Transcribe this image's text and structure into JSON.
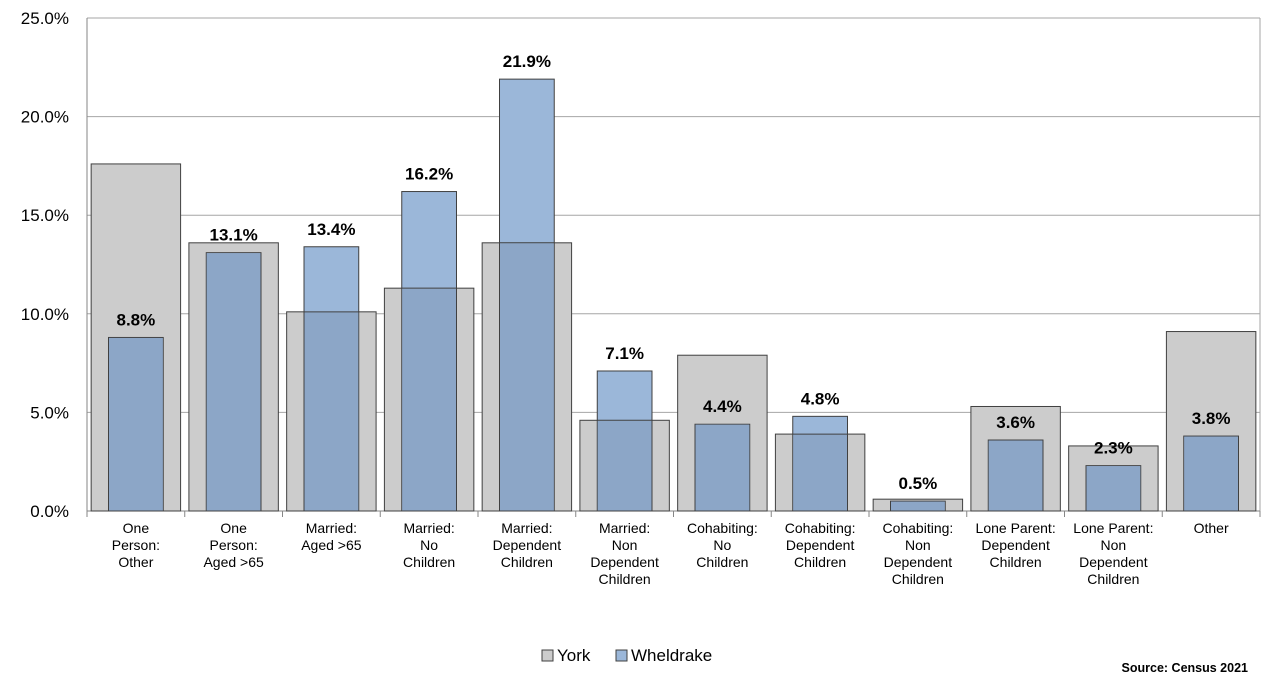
{
  "chart_data": {
    "type": "bar",
    "categories": [
      [
        "One",
        "Person:",
        "Other"
      ],
      [
        "One",
        "Person:",
        "Aged >65"
      ],
      [
        "Married:",
        "Aged >65"
      ],
      [
        "Married:",
        "No",
        "Children"
      ],
      [
        "Married:",
        "Dependent",
        "Children"
      ],
      [
        "Married:",
        "Non",
        "Dependent",
        "Children"
      ],
      [
        "Cohabiting:",
        "No",
        "Children"
      ],
      [
        "Cohabiting:",
        "Dependent",
        "Children"
      ],
      [
        "Cohabiting:",
        "Non",
        "Dependent",
        "Children"
      ],
      [
        "Lone Parent:",
        "Dependent",
        "Children"
      ],
      [
        "Lone Parent:",
        "Non",
        "Dependent",
        "Children"
      ],
      [
        "Other"
      ]
    ],
    "series": [
      {
        "name": "York",
        "values": [
          17.6,
          13.6,
          10.1,
          11.3,
          13.6,
          4.6,
          7.9,
          3.9,
          0.6,
          5.3,
          3.3,
          9.1
        ],
        "color": "#cccccc"
      },
      {
        "name": "Wheldrake",
        "values": [
          8.8,
          13.1,
          13.4,
          16.2,
          21.9,
          7.1,
          4.4,
          4.8,
          0.5,
          3.6,
          2.3,
          3.8
        ],
        "color": "#9bb7d9"
      }
    ],
    "data_labels": [
      "8.8%",
      "13.1%",
      "13.4%",
      "16.2%",
      "21.9%",
      "7.1%",
      "4.4%",
      "4.8%",
      "0.5%",
      "3.6%",
      "2.3%",
      "3.8%"
    ],
    "y_ticks": [
      "0.0%",
      "5.0%",
      "10.0%",
      "15.0%",
      "20.0%",
      "25.0%"
    ],
    "ylim": [
      0,
      25
    ],
    "grid": true,
    "legend_position": "bottom-center",
    "overlap_color": "#8ca6c7",
    "title": "",
    "xlabel": "",
    "ylabel": ""
  },
  "source_text": "Source: Census 2021"
}
